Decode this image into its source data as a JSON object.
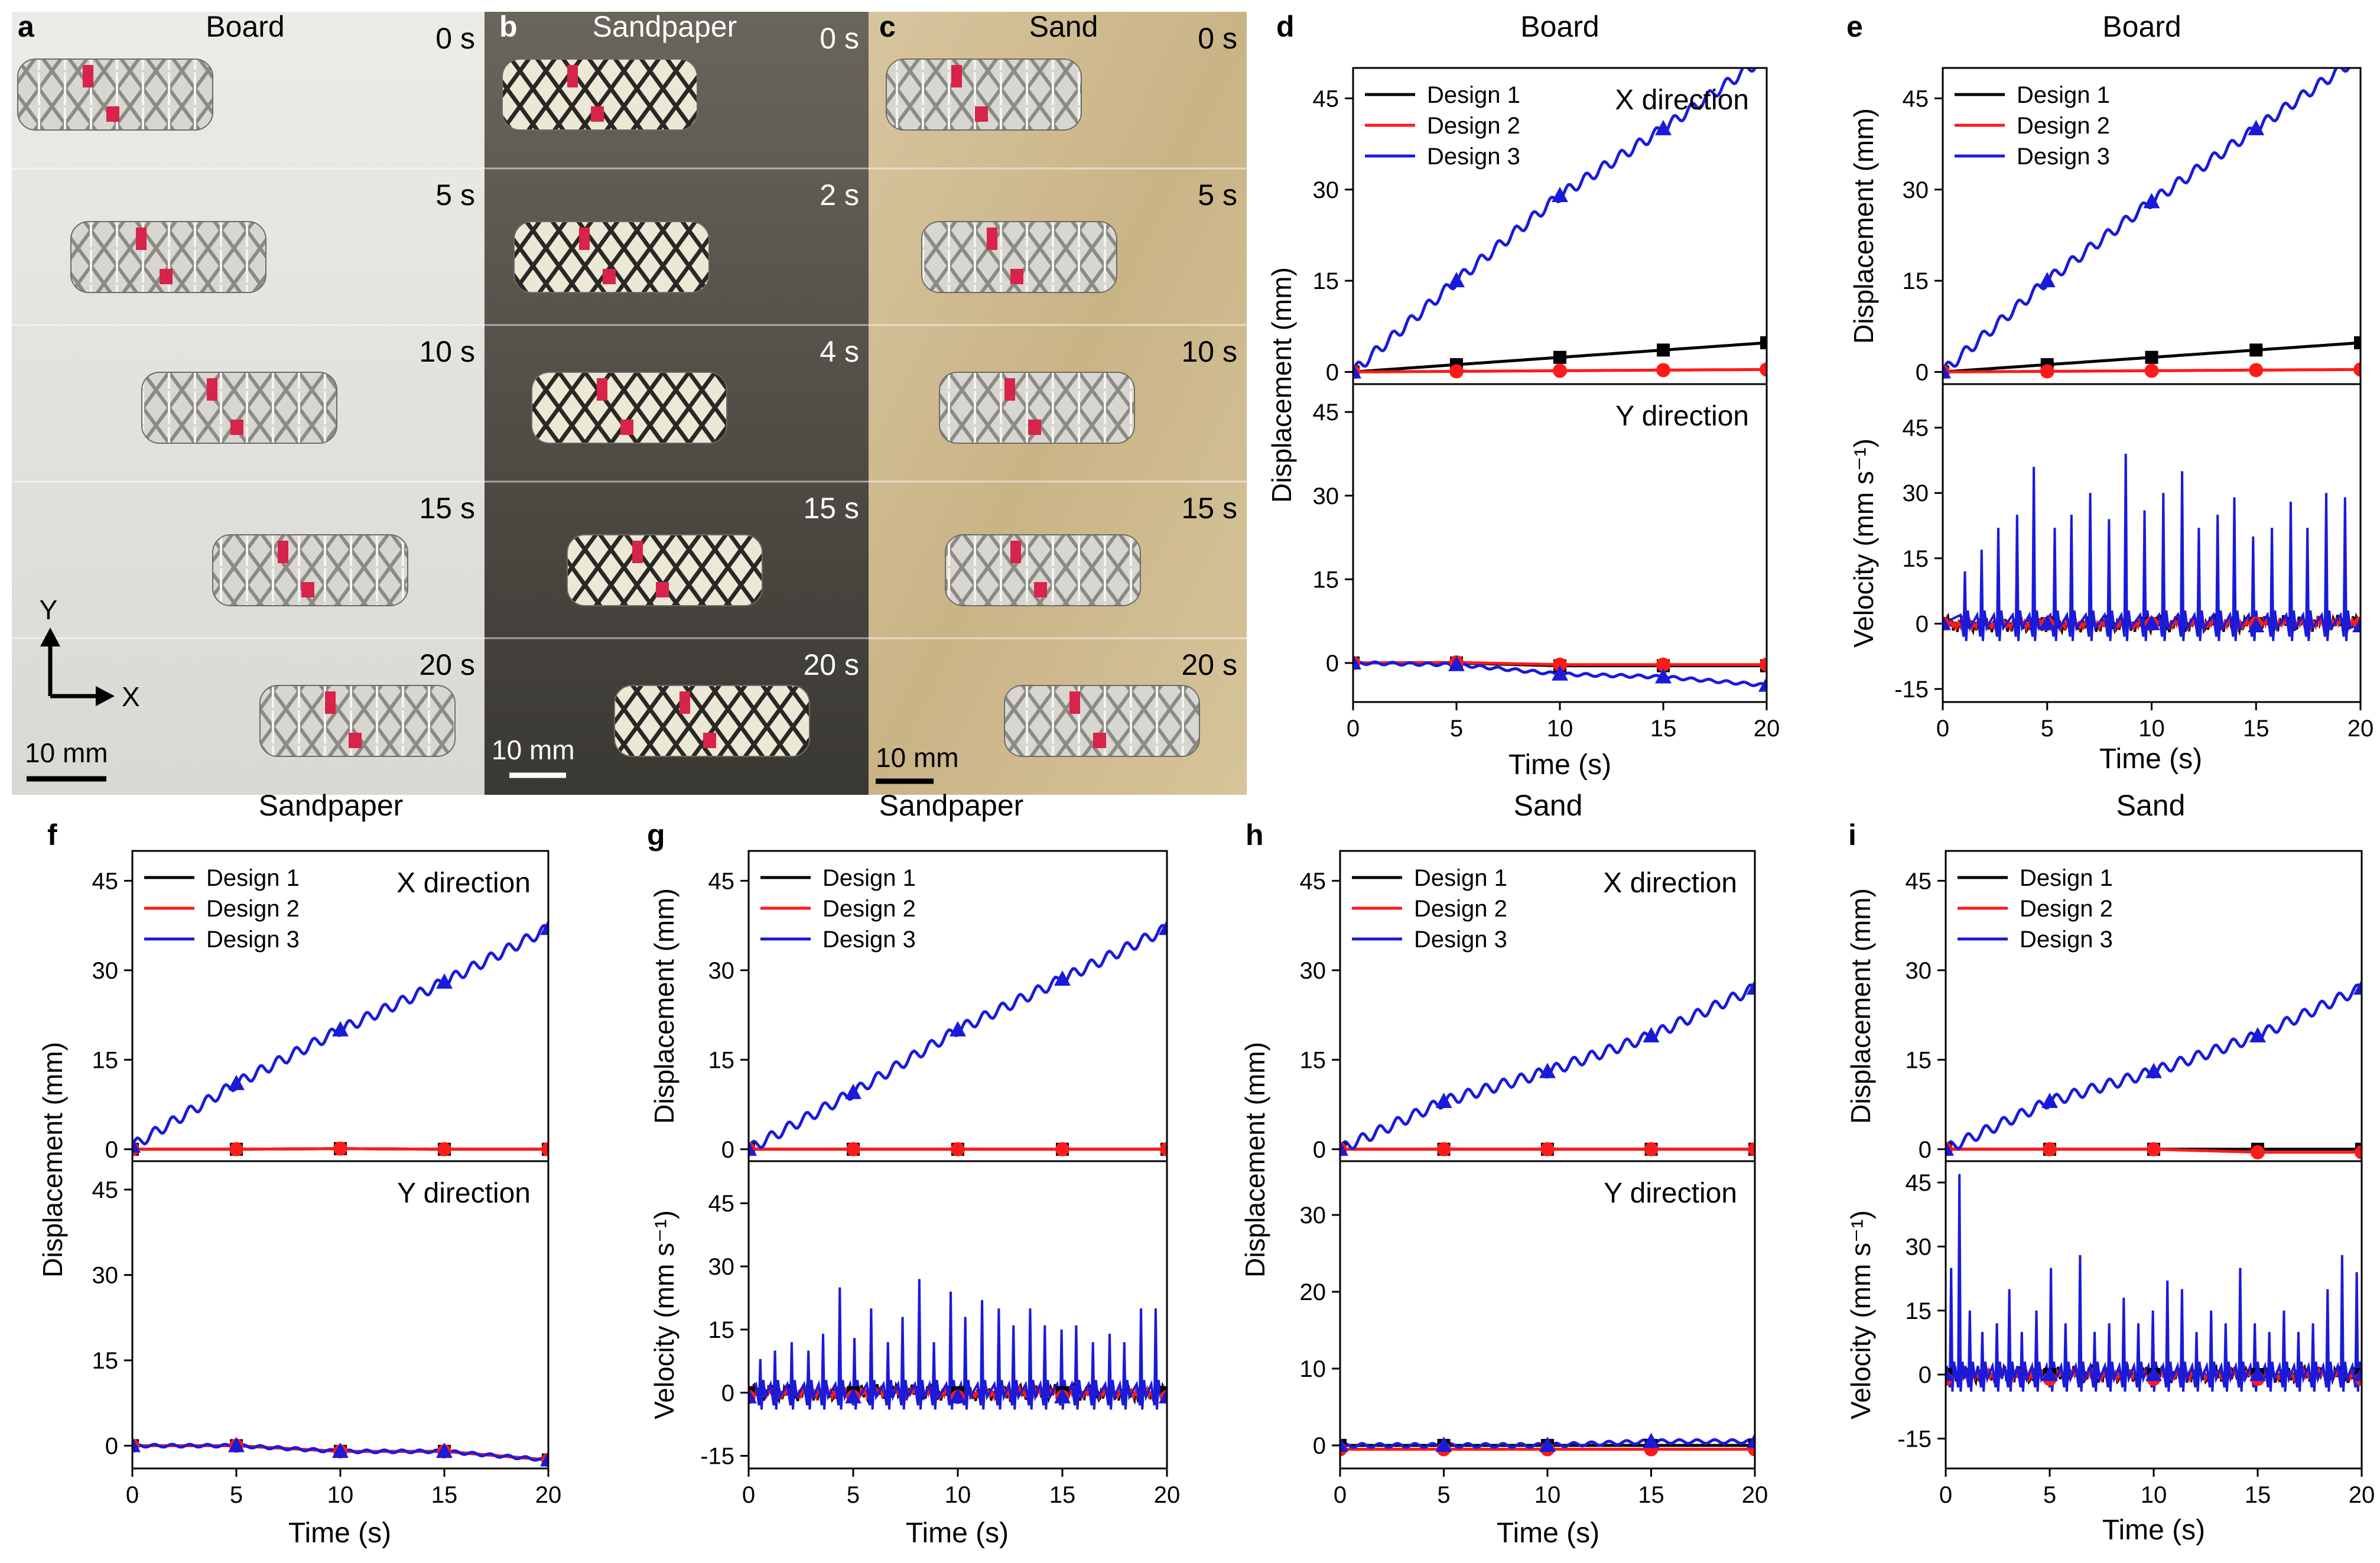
{
  "figure": {
    "xlabel": "Time (s)",
    "ylabel_displacement": "Displacement (mm)",
    "ylabel_velocity": "Velocity (mm s⁻¹)",
    "legend": [
      "Design 1",
      "Design 2",
      "Design 3"
    ],
    "colors": {
      "design1": "#000000",
      "design2": "#ff1a1a",
      "design3": "#1a1adb"
    }
  },
  "photos": [
    {
      "letter": "a",
      "surface": "Board",
      "times": [
        "0 s",
        "5 s",
        "10 s",
        "15 s",
        "20 s"
      ],
      "scale_bar": "10 mm",
      "axis_y": "Y",
      "axis_x": "X"
    },
    {
      "letter": "b",
      "surface": "Sandpaper",
      "times": [
        "0 s",
        "2 s",
        "4 s",
        "15 s",
        "20 s"
      ],
      "scale_bar": "10 mm"
    },
    {
      "letter": "c",
      "surface": "Sand",
      "times": [
        "0 s",
        "5 s",
        "10 s",
        "15 s",
        "20 s"
      ],
      "scale_bar": "10 mm"
    }
  ],
  "chart_data": [
    {
      "panel": "d",
      "type": "line",
      "title": "Board",
      "subplots": [
        {
          "kind": "displacement",
          "annotation": "X direction",
          "legend": true,
          "ylim": [
            -2,
            50
          ],
          "yticks": [
            0,
            15,
            30,
            45
          ],
          "series": [
            {
              "name": "Design 1",
              "x": [
                0,
                5,
                10,
                15,
                20
              ],
              "values": [
                0,
                1.2,
                2.4,
                3.6,
                4.8
              ]
            },
            {
              "name": "Design 2",
              "x": [
                0,
                5,
                10,
                15,
                20
              ],
              "values": [
                0,
                0.1,
                0.2,
                0.3,
                0.4
              ]
            },
            {
              "name": "Design 3",
              "x": [
                0,
                5,
                10,
                15,
                20
              ],
              "values": [
                0,
                15,
                29,
                40,
                52
              ]
            }
          ]
        },
        {
          "kind": "displacement",
          "annotation": "Y direction",
          "legend": false,
          "ylim": [
            -7,
            50
          ],
          "yticks": [
            0,
            15,
            30,
            45
          ],
          "series": [
            {
              "name": "Design 1",
              "x": [
                0,
                5,
                10,
                15,
                20
              ],
              "values": [
                0,
                0,
                -0.5,
                -0.5,
                -0.5
              ]
            },
            {
              "name": "Design 2",
              "x": [
                0,
                5,
                10,
                15,
                20
              ],
              "values": [
                0,
                0.1,
                -0.3,
                -0.3,
                -0.3
              ]
            },
            {
              "name": "Design 3",
              "x": [
                0,
                5,
                10,
                15,
                20
              ],
              "values": [
                0,
                -0.3,
                -2,
                -2.5,
                -4
              ]
            }
          ]
        }
      ],
      "xlim": [
        0,
        20
      ],
      "xticks": [
        0,
        5,
        10,
        15,
        20
      ]
    },
    {
      "panel": "e",
      "type": "line",
      "title": "Board",
      "subplots": [
        {
          "kind": "displacement",
          "annotation": "",
          "legend": true,
          "ylim": [
            -2,
            50
          ],
          "yticks": [
            0,
            15,
            30,
            45
          ],
          "series": [
            {
              "name": "Design 1",
              "x": [
                0,
                5,
                10,
                15,
                20
              ],
              "values": [
                0,
                1.2,
                2.4,
                3.6,
                4.8
              ]
            },
            {
              "name": "Design 2",
              "x": [
                0,
                5,
                10,
                15,
                20
              ],
              "values": [
                0,
                0.1,
                0.2,
                0.3,
                0.4
              ]
            },
            {
              "name": "Design 3",
              "x": [
                0,
                5,
                10,
                15,
                20
              ],
              "values": [
                0,
                15,
                28,
                40,
                52
              ]
            }
          ]
        },
        {
          "kind": "velocity",
          "annotation": "",
          "legend": false,
          "ylim": [
            -18,
            55
          ],
          "yticks": [
            -15,
            0,
            15,
            30,
            45
          ],
          "spike_times": [
            1.1,
            1.9,
            2.7,
            3.6,
            4.4,
            5.4,
            6.2,
            7.1,
            8.0,
            8.8,
            9.7,
            10.6,
            11.5,
            12.3,
            13.2,
            14.0,
            14.9,
            15.8,
            16.7,
            17.5,
            18.4,
            19.3
          ],
          "spike_peaks": [
            12,
            17,
            22,
            25,
            36,
            22,
            25,
            30,
            24,
            39,
            26,
            30,
            35,
            22,
            25,
            29,
            20,
            22,
            28,
            22,
            30,
            29
          ],
          "markers": {
            "Design 1": [
              0,
              0,
              0,
              0,
              0
            ],
            "Design 2": [
              0,
              0,
              0,
              0,
              0
            ],
            "Design 3": [
              0,
              0,
              0,
              -0.5,
              -0.5
            ]
          }
        }
      ],
      "xlim": [
        0,
        20
      ],
      "xticks": [
        0,
        5,
        10,
        15,
        20
      ]
    },
    {
      "panel": "f",
      "type": "line",
      "title": "Sandpaper",
      "subplots": [
        {
          "kind": "displacement",
          "annotation": "X direction",
          "legend": true,
          "ylim": [
            -2,
            50
          ],
          "yticks": [
            0,
            15,
            30,
            45
          ],
          "series": [
            {
              "name": "Design 1",
              "x": [
                0,
                5,
                10,
                15,
                20
              ],
              "values": [
                0,
                0,
                0.1,
                0,
                0
              ]
            },
            {
              "name": "Design 2",
              "x": [
                0,
                5,
                10,
                15,
                20
              ],
              "values": [
                0,
                0,
                0.1,
                0,
                0
              ]
            },
            {
              "name": "Design 3",
              "x": [
                0,
                5,
                10,
                15,
                20
              ],
              "values": [
                0.5,
                11,
                20,
                28,
                37
              ]
            }
          ]
        },
        {
          "kind": "displacement",
          "annotation": "Y direction",
          "legend": false,
          "ylim": [
            -4,
            50
          ],
          "yticks": [
            0,
            15,
            30,
            45
          ],
          "series": [
            {
              "name": "Design 1",
              "x": [
                0,
                5,
                10,
                15,
                20
              ],
              "values": [
                0,
                0,
                -1,
                -1,
                -2.5
              ]
            },
            {
              "name": "Design 2",
              "x": [
                0,
                5,
                10,
                15,
                20
              ],
              "values": [
                0,
                0,
                -1,
                -1,
                -2.5
              ]
            },
            {
              "name": "Design 3",
              "x": [
                0,
                5,
                10,
                15,
                20
              ],
              "values": [
                0,
                0,
                -1,
                -1,
                -2.5
              ]
            }
          ]
        }
      ],
      "xlim": [
        0,
        20
      ],
      "xticks": [
        0,
        5,
        10,
        15,
        20
      ]
    },
    {
      "panel": "g",
      "type": "line",
      "title": "Sandpaper",
      "subplots": [
        {
          "kind": "displacement",
          "annotation": "",
          "legend": true,
          "ylim": [
            -2,
            50
          ],
          "yticks": [
            0,
            15,
            30,
            45
          ],
          "series": [
            {
              "name": "Design 1",
              "x": [
                0,
                5,
                10,
                15,
                20
              ],
              "values": [
                0,
                0,
                0,
                0,
                0
              ]
            },
            {
              "name": "Design 2",
              "x": [
                0,
                5,
                10,
                15,
                20
              ],
              "values": [
                0,
                0,
                0,
                0,
                0
              ]
            },
            {
              "name": "Design 3",
              "x": [
                0,
                5,
                10,
                15,
                20
              ],
              "values": [
                0,
                9.5,
                20,
                28.5,
                37
              ]
            }
          ]
        },
        {
          "kind": "velocity",
          "annotation": "",
          "legend": false,
          "ylim": [
            -18,
            55
          ],
          "yticks": [
            -15,
            0,
            15,
            30,
            45
          ],
          "spike_times": [
            0.6,
            1.3,
            2.1,
            2.9,
            3.6,
            4.4,
            5.1,
            5.9,
            6.7,
            7.4,
            8.2,
            8.9,
            9.7,
            10.4,
            11.2,
            12.0,
            12.7,
            13.5,
            14.2,
            15.0,
            15.7,
            16.5,
            17.3,
            18.0,
            18.8,
            19.5
          ],
          "spike_peaks": [
            8,
            10,
            12,
            10,
            14,
            25,
            13,
            20,
            12,
            18,
            27,
            12,
            24,
            18,
            22,
            20,
            16,
            20,
            16,
            15,
            16,
            12,
            14,
            12,
            20,
            20
          ],
          "markers": {
            "Design 1": [
              0,
              0,
              0,
              0,
              0
            ],
            "Design 2": [
              -1,
              -1,
              -1,
              -1,
              -1
            ],
            "Design 3": [
              -1,
              -1,
              -1,
              -1,
              -1
            ]
          }
        }
      ],
      "xlim": [
        0,
        20
      ],
      "xticks": [
        0,
        5,
        10,
        15,
        20
      ]
    },
    {
      "panel": "h",
      "type": "line",
      "title": "Sand",
      "subplots": [
        {
          "kind": "displacement",
          "annotation": "X direction",
          "legend": true,
          "ylim": [
            -2,
            50
          ],
          "yticks": [
            0,
            15,
            30,
            45
          ],
          "series": [
            {
              "name": "Design 1",
              "x": [
                0,
                5,
                10,
                15,
                20
              ],
              "values": [
                0,
                0,
                0,
                0,
                0
              ]
            },
            {
              "name": "Design 2",
              "x": [
                0,
                5,
                10,
                15,
                20
              ],
              "values": [
                0,
                0,
                0,
                0,
                0
              ]
            },
            {
              "name": "Design 3",
              "x": [
                0,
                5,
                10,
                15,
                20
              ],
              "values": [
                0,
                8,
                13,
                19,
                27
              ]
            }
          ]
        },
        {
          "kind": "displacement",
          "annotation": "Y direction",
          "legend": false,
          "ylim": [
            -3,
            37
          ],
          "yticks": [
            0,
            10,
            20,
            30
          ],
          "series": [
            {
              "name": "Design 1",
              "x": [
                0,
                5,
                10,
                15,
                20
              ],
              "values": [
                0,
                0,
                0,
                0,
                0
              ]
            },
            {
              "name": "Design 2",
              "x": [
                0,
                5,
                10,
                15,
                20
              ],
              "values": [
                -0.5,
                -0.5,
                -0.5,
                -0.5,
                -0.5
              ]
            },
            {
              "name": "Design 3",
              "x": [
                0,
                5,
                10,
                15,
                20
              ],
              "values": [
                0,
                0,
                0,
                0.5,
                0.5
              ]
            }
          ]
        }
      ],
      "xlim": [
        0,
        20
      ],
      "xticks": [
        0,
        5,
        10,
        15,
        20
      ]
    },
    {
      "panel": "i",
      "type": "line",
      "title": "Sand",
      "subplots": [
        {
          "kind": "displacement",
          "annotation": "",
          "legend": true,
          "ylim": [
            -2,
            50
          ],
          "yticks": [
            0,
            15,
            30,
            45
          ],
          "series": [
            {
              "name": "Design 1",
              "x": [
                0,
                5,
                10,
                15,
                20
              ],
              "values": [
                0,
                0,
                0,
                0,
                0
              ]
            },
            {
              "name": "Design 2",
              "x": [
                0,
                5,
                10,
                15,
                20
              ],
              "values": [
                0,
                0,
                0,
                -0.5,
                -0.5
              ]
            },
            {
              "name": "Design 3",
              "x": [
                0,
                5,
                10,
                15,
                20
              ],
              "values": [
                0,
                8,
                13,
                19,
                27
              ]
            }
          ]
        },
        {
          "kind": "velocity",
          "annotation": "",
          "legend": false,
          "ylim": [
            -22,
            50
          ],
          "yticks": [
            -15,
            0,
            15,
            30,
            45
          ],
          "spike_times": [
            0.3,
            0.7,
            1.2,
            1.8,
            2.5,
            3.1,
            3.7,
            4.4,
            5.1,
            5.8,
            6.5,
            7.2,
            7.9,
            8.6,
            9.3,
            10.0,
            10.7,
            11.4,
            12.1,
            12.8,
            13.5,
            14.2,
            14.9,
            15.6,
            16.3,
            17.0,
            17.7,
            18.4,
            19.1,
            19.8
          ],
          "spike_peaks": [
            25,
            47,
            15,
            10,
            12,
            20,
            10,
            15,
            25,
            12,
            28,
            10,
            12,
            18,
            12,
            15,
            22,
            20,
            10,
            15,
            12,
            25,
            12,
            10,
            15,
            10,
            12,
            20,
            28,
            24
          ],
          "markers": {
            "Design 1": [
              0,
              0,
              0,
              0,
              0
            ],
            "Design 2": [
              -1,
              -1,
              -1,
              -1,
              -1
            ],
            "Design 3": [
              0,
              0,
              0,
              0,
              0
            ]
          }
        }
      ],
      "xlim": [
        0,
        20
      ],
      "xticks": [
        0,
        5,
        10,
        15,
        20
      ]
    }
  ]
}
